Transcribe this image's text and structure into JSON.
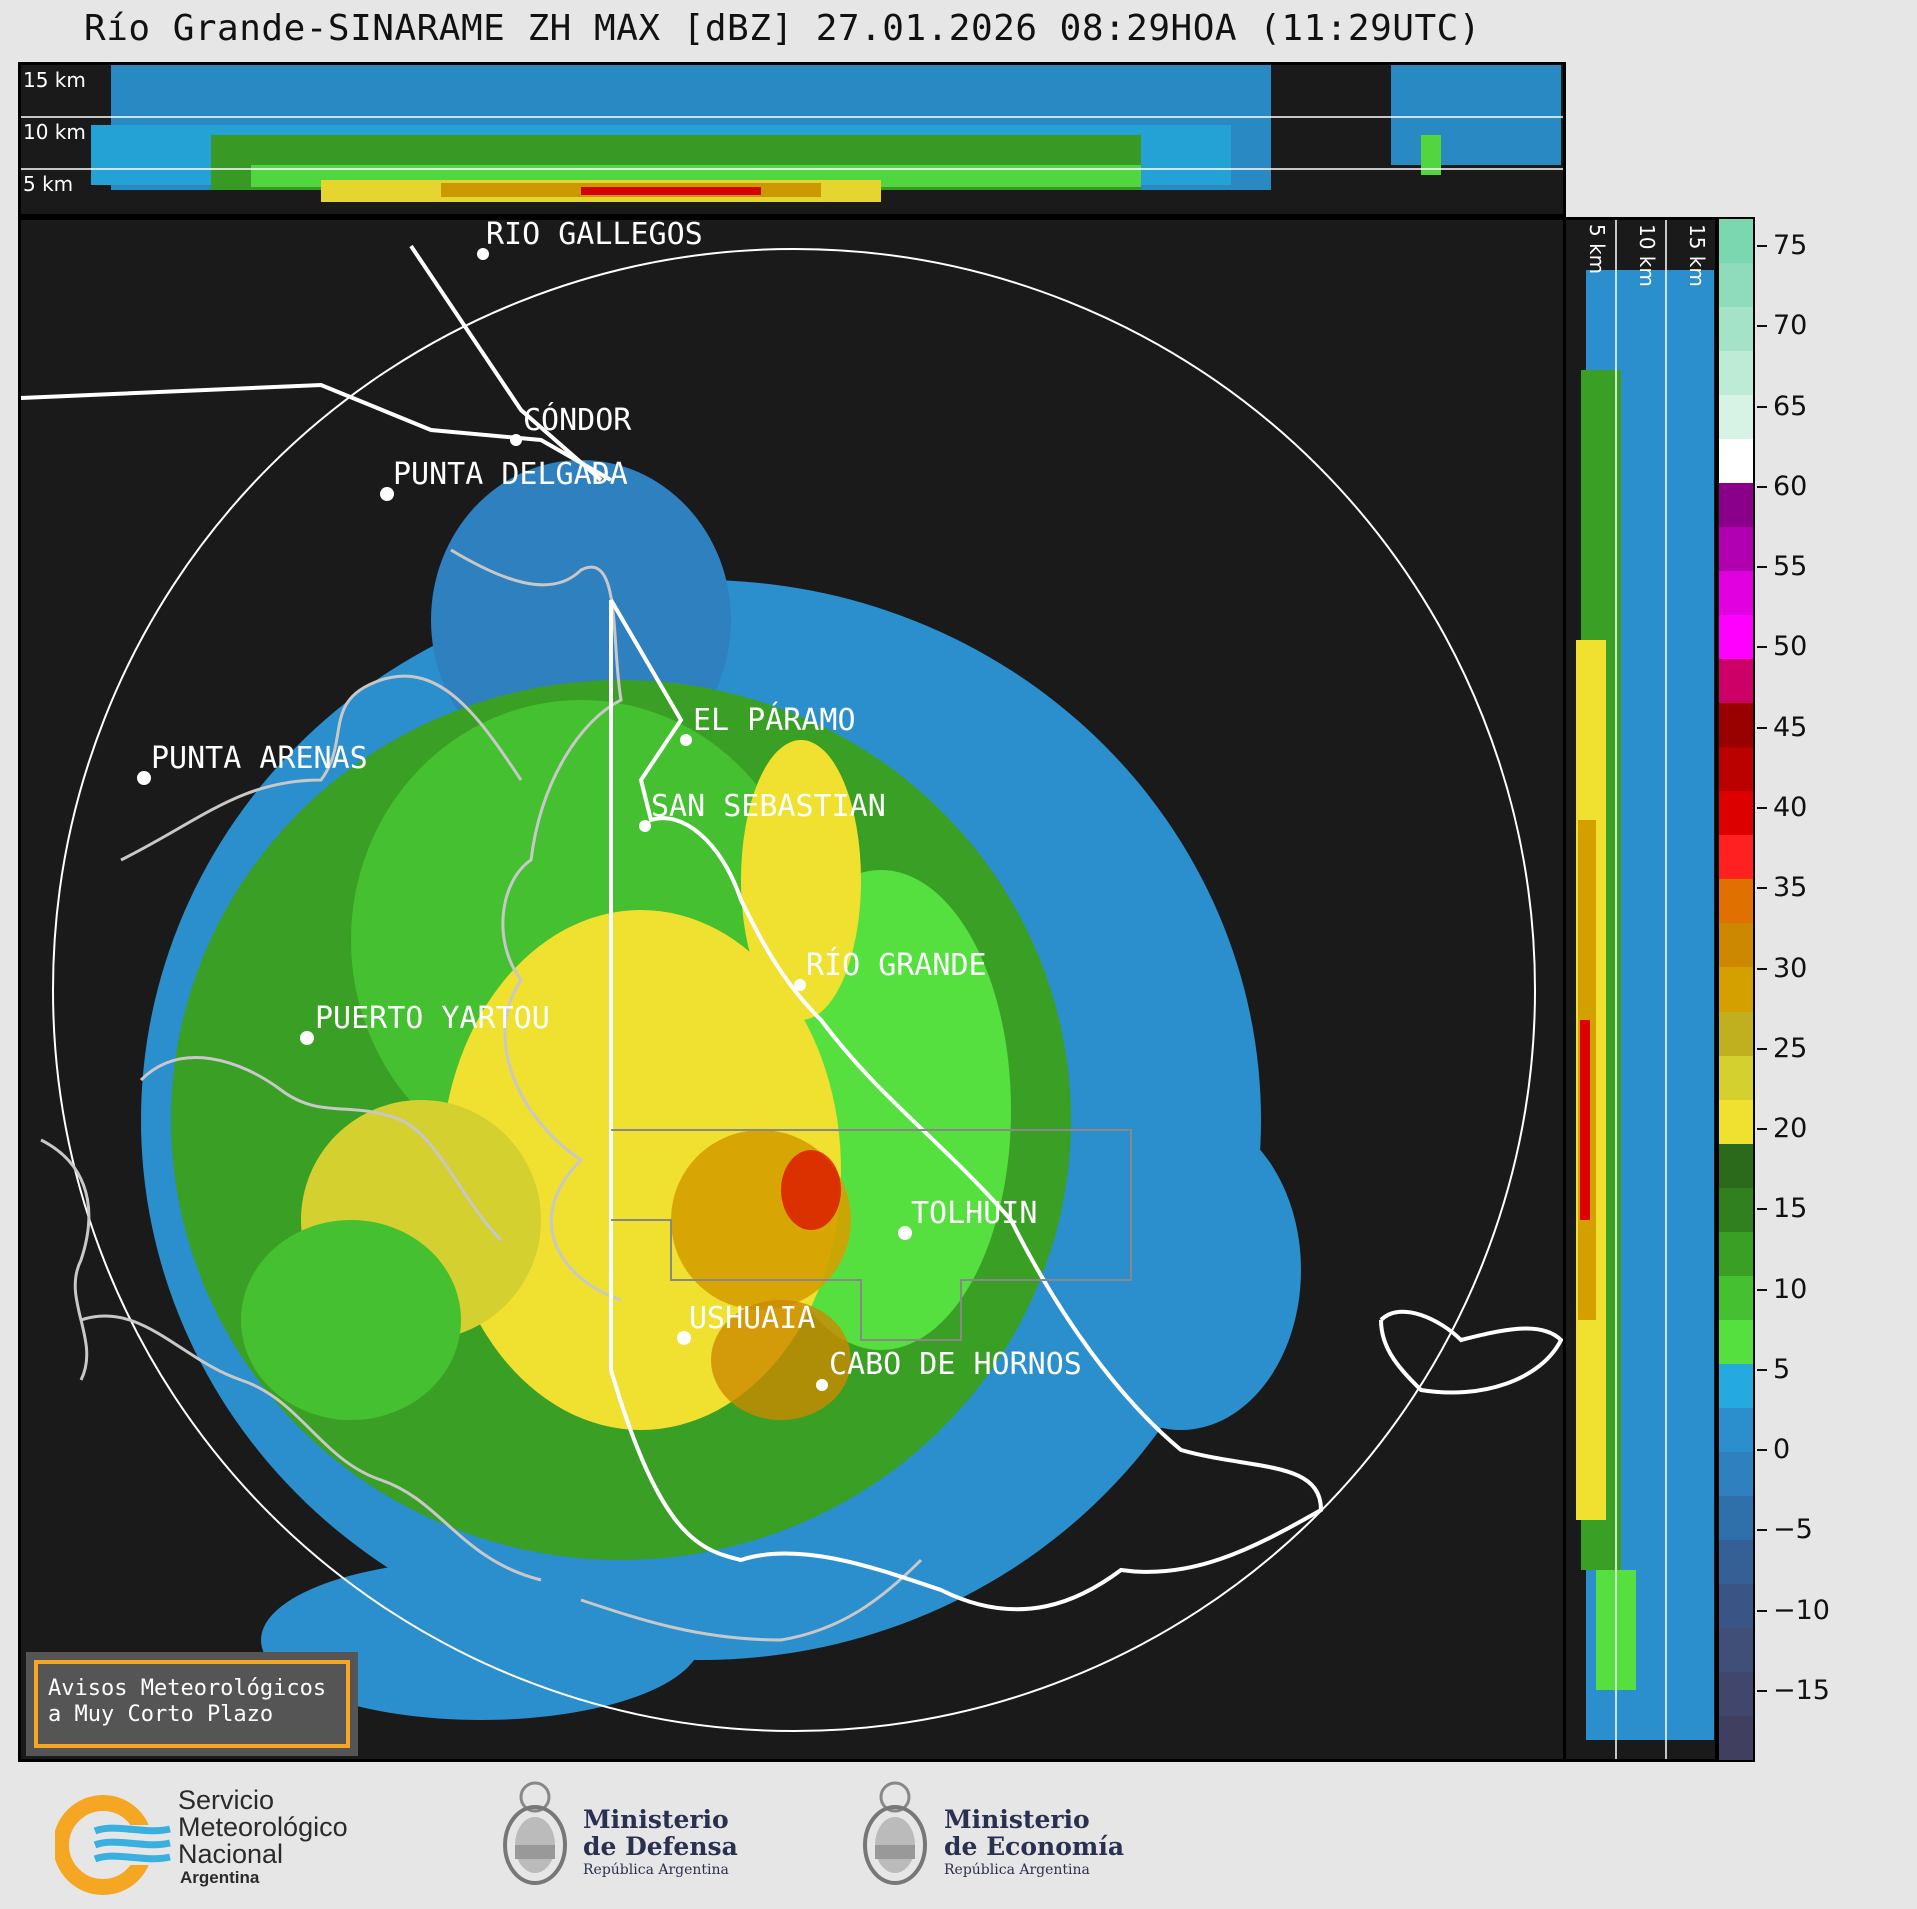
{
  "title": "Río Grande-SINARAME ZH MAX [dBZ] 27.01.2026 08:29HOA (11:29UTC)",
  "top_panel": {
    "labels": [
      "15 km",
      "10 km",
      "5 km"
    ]
  },
  "side_panel": {
    "labels": [
      "5 km",
      "10 km",
      "15 km"
    ]
  },
  "cities": [
    {
      "id": "rio-gallegos",
      "name": "RÍO GALLEGOS"
    },
    {
      "id": "condor",
      "name": "CÓNDOR"
    },
    {
      "id": "punta-delgada",
      "name": "PUNTA DELGADA"
    },
    {
      "id": "el-paramo",
      "name": "EL PÁRAMO"
    },
    {
      "id": "punta-arenas",
      "name": "PUNTA ARENAS"
    },
    {
      "id": "san-sebastian",
      "name": "SAN SEBASTIAN"
    },
    {
      "id": "rio-grande",
      "name": "RÍO GRANDE"
    },
    {
      "id": "puerto-yartou",
      "name": "PUERTO YARTOU"
    },
    {
      "id": "tolhuin",
      "name": "TOLHUIN"
    },
    {
      "id": "ushuaia",
      "name": "USHUAIA"
    },
    {
      "id": "cabo-de-hornos",
      "name": "CABO DE HORNOS"
    }
  ],
  "colorbar": {
    "unit": "dBZ",
    "ticks": [
      "75",
      "70",
      "65",
      "60",
      "55",
      "50",
      "45",
      "40",
      "35",
      "30",
      "25",
      "20",
      "15",
      "10",
      "5",
      "0",
      "−5",
      "−10",
      "−15"
    ],
    "colors": [
      "#7ad7b0",
      "#8fdcbc",
      "#a5e3c8",
      "#bdebd6",
      "#d6f3e6",
      "#ffffff",
      "#8b008b",
      "#b000b0",
      "#e000e0",
      "#ff00ff",
      "#cc0066",
      "#990000",
      "#bb0000",
      "#dd0000",
      "#ff2020",
      "#e07000",
      "#cc8800",
      "#d4a000",
      "#c0b020",
      "#d4d030",
      "#f0e030",
      "#2a6a1a",
      "#308020",
      "#3aa025",
      "#45c030",
      "#55e040",
      "#25aae0",
      "#2a8fcc",
      "#2f80bf",
      "#3070aa",
      "#356095",
      "#3a5585",
      "#3f4f78",
      "#40466c",
      "#403f60"
    ]
  },
  "avisos": {
    "line1": "Avisos Meteorológicos",
    "line2": "a Muy Corto Plazo"
  },
  "logos": {
    "smn": {
      "line1": "Servicio",
      "line2": "Meteorológico",
      "line3": "Nacional",
      "line4": "Argentina"
    },
    "defensa": {
      "line1": "Ministerio",
      "line2": "de Defensa",
      "line3": "República Argentina"
    },
    "economia": {
      "line1": "Ministerio",
      "line2": "de Economía",
      "line3": "República Argentina"
    }
  }
}
